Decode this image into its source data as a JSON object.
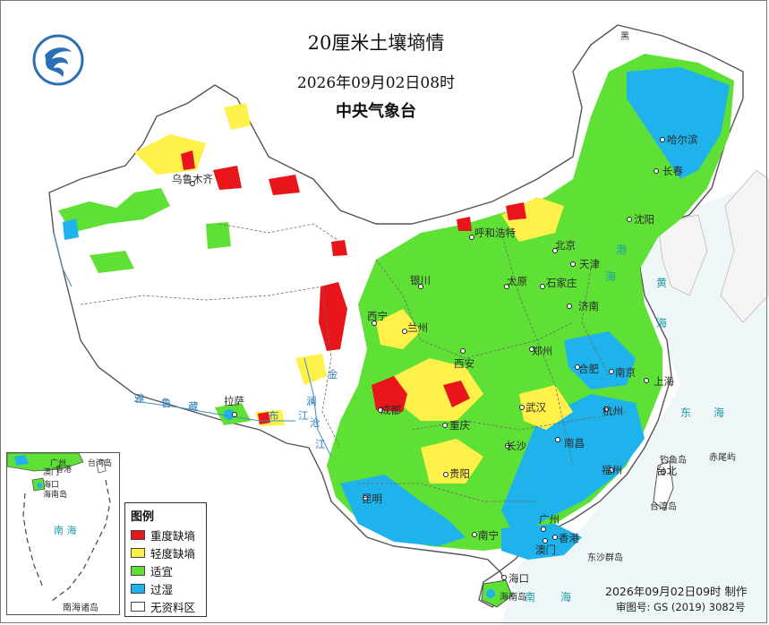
{
  "header": {
    "title": "20厘米土壤墒情",
    "datetime": "2026年09月02日08时",
    "issuer": "中央气象台"
  },
  "legend": {
    "title": "图例",
    "items": [
      {
        "label": "重度缺墒",
        "color": "#e8151b"
      },
      {
        "label": "轻度缺墒",
        "color": "#fff04a"
      },
      {
        "label": "适宜",
        "color": "#5fe035"
      },
      {
        "label": "过湿",
        "color": "#1eb3ec"
      },
      {
        "label": "无资料区",
        "color": "#ffffff"
      }
    ]
  },
  "footer": {
    "made_at": "2026年09月02日09时 制作",
    "approval": "审图号: GS (2019) 3082号"
  },
  "inset": {
    "label": "南海诸岛",
    "sea_label": "南 海",
    "places": [
      "广州",
      "香港",
      "澳门",
      "海口",
      "海南岛",
      "台湾岛"
    ]
  },
  "cities": [
    {
      "name": "乌鲁木齐"
    },
    {
      "name": "拉萨"
    },
    {
      "name": "西宁"
    },
    {
      "name": "兰州"
    },
    {
      "name": "银川"
    },
    {
      "name": "呼和浩特"
    },
    {
      "name": "北京"
    },
    {
      "name": "天津"
    },
    {
      "name": "哈尔滨"
    },
    {
      "name": "长春"
    },
    {
      "name": "沈阳"
    },
    {
      "name": "太原"
    },
    {
      "name": "石家庄"
    },
    {
      "name": "济南"
    },
    {
      "name": "郑州"
    },
    {
      "name": "西安"
    },
    {
      "name": "成都"
    },
    {
      "name": "重庆"
    },
    {
      "name": "武汉"
    },
    {
      "name": "合肥"
    },
    {
      "name": "南京"
    },
    {
      "name": "上海"
    },
    {
      "name": "杭州"
    },
    {
      "name": "长沙"
    },
    {
      "name": "南昌"
    },
    {
      "name": "福州"
    },
    {
      "name": "台北"
    },
    {
      "name": "贵阳"
    },
    {
      "name": "昆明"
    },
    {
      "name": "南宁"
    },
    {
      "name": "广州"
    },
    {
      "name": "澳门"
    },
    {
      "name": "香港"
    },
    {
      "name": "海口"
    }
  ],
  "places": {
    "islands": [
      "钓鱼岛",
      "赤尾屿",
      "台湾岛",
      "海南岛",
      "东沙群岛"
    ],
    "seas": [
      "渤",
      "海",
      "黄",
      "海",
      "东",
      "海",
      "南",
      "海"
    ],
    "rivers": [
      "雅",
      "鲁",
      "藏",
      "布",
      "江",
      "澜",
      "沧",
      "江",
      "金"
    ],
    "heilongjiang": "黑"
  },
  "colors": {
    "heavy_deficit": "#e8151b",
    "light_deficit": "#fff04a",
    "suitable": "#5fe035",
    "wet": "#1eb3ec",
    "no_data": "#ffffff",
    "boundary": "#555555",
    "sea_text": "#1b9ea9",
    "river": "#2e7fb9"
  }
}
